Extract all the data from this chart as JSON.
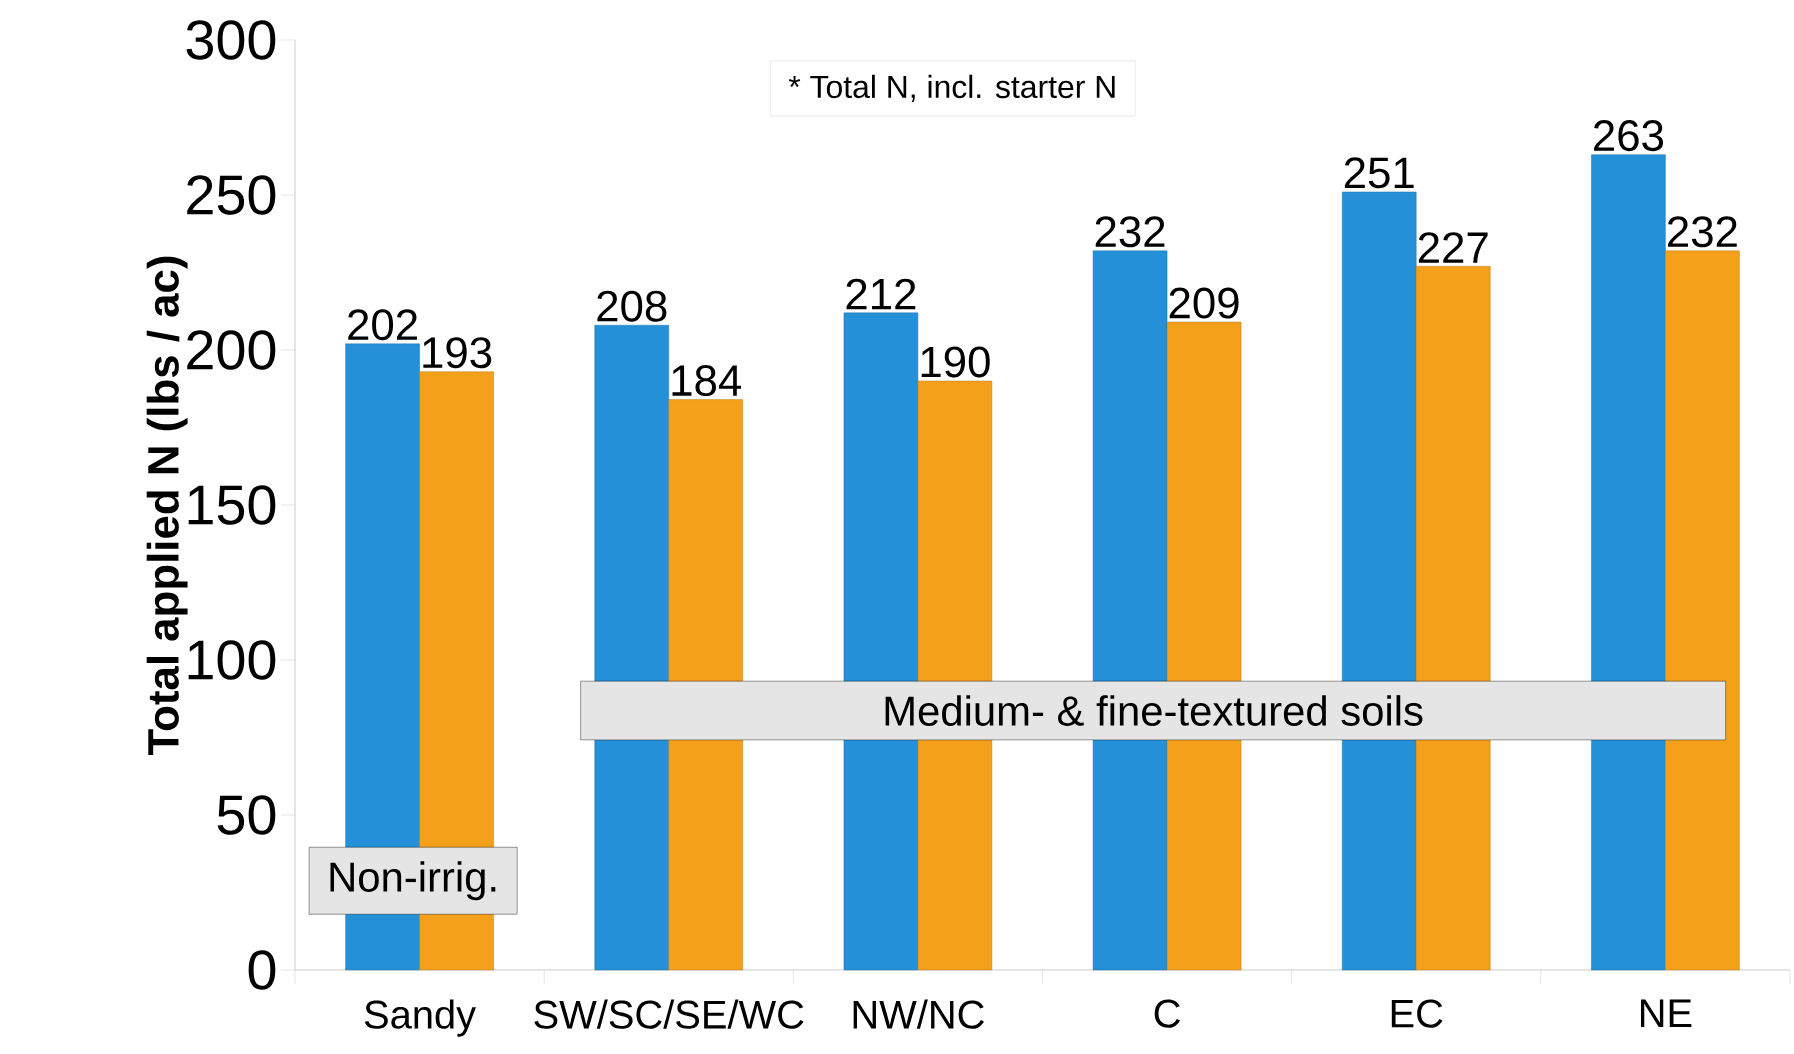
{
  "chart_data": {
    "type": "bar",
    "ylabel": "Total applied N (lbs / ac)",
    "categories": [
      "Sandy",
      "SW/SC/SE/WC",
      "NW/NC",
      "C",
      "EC",
      "NE"
    ],
    "series": [
      {
        "color": "#2390d8",
        "values": [
          202,
          208,
          212,
          232,
          251,
          263
        ]
      },
      {
        "color": "#f5a01a",
        "values": [
          193,
          184,
          190,
          209,
          227,
          232
        ]
      }
    ],
    "ylim": [
      0,
      300
    ],
    "yticks": [
      0,
      50,
      100,
      150,
      200,
      250,
      300
    ],
    "data_labels": true,
    "annotations": [
      "* Total N, incl. starter N",
      "Medium- & fine-textured soils",
      "Non-irrig."
    ]
  }
}
